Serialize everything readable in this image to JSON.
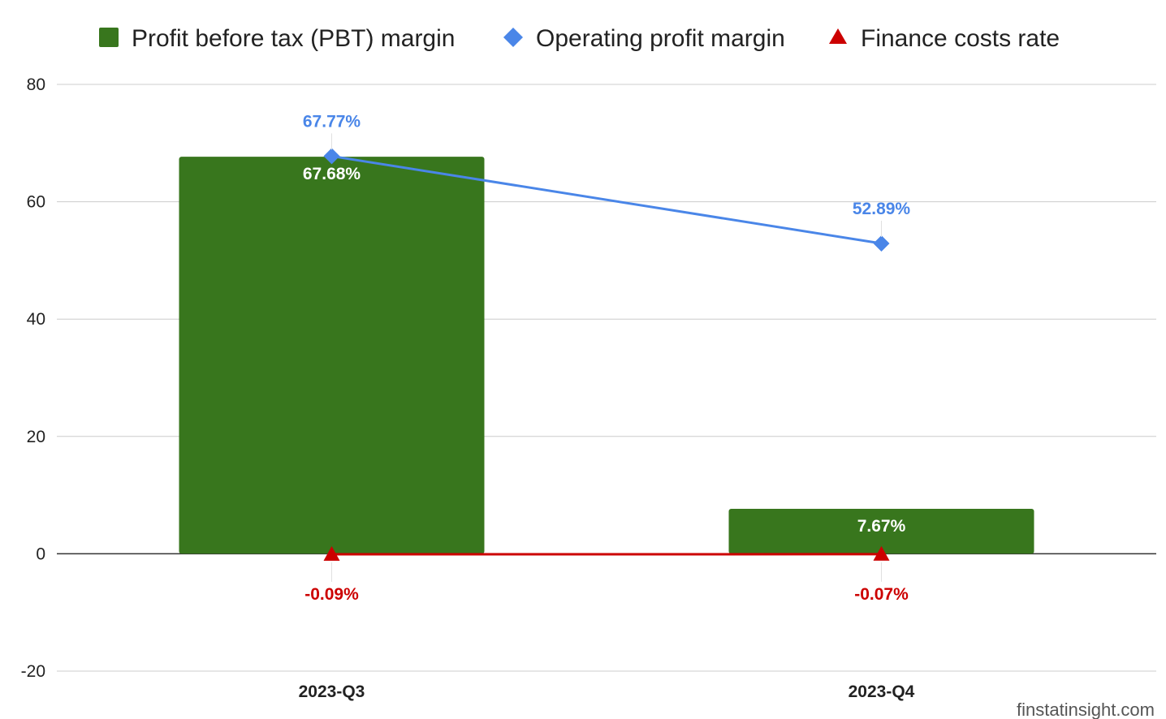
{
  "chart_data": {
    "type": "bar",
    "categories": [
      "2023-Q3",
      "2023-Q4"
    ],
    "series": [
      {
        "name": "Profit before tax (PBT) margin",
        "type": "bar",
        "color": "#38761d",
        "marker": "square",
        "values": [
          67.68,
          7.67
        ],
        "labels": [
          "67.68%",
          "7.67%"
        ],
        "label_color": "#ffffff"
      },
      {
        "name": "Operating profit margin",
        "type": "line",
        "color": "#4a86e8",
        "marker": "diamond",
        "values": [
          67.77,
          52.89
        ],
        "labels": [
          "67.77%",
          "52.89%"
        ],
        "label_color": "#4a86e8"
      },
      {
        "name": "Finance costs rate",
        "type": "line",
        "color": "#cc0000",
        "marker": "triangle",
        "values": [
          -0.09,
          -0.07
        ],
        "labels": [
          "-0.09%",
          "-0.07%"
        ],
        "label_color": "#cc0000"
      }
    ],
    "ylim": [
      -20,
      80
    ],
    "yticks": [
      "-20",
      "0",
      "20",
      "40",
      "60",
      "80"
    ],
    "ytick_values": [
      -20,
      0,
      20,
      40,
      60,
      80
    ],
    "grid": true,
    "legend_position": "top",
    "title": "",
    "xlabel": "",
    "ylabel": ""
  },
  "watermark": "finstatinsight.com"
}
